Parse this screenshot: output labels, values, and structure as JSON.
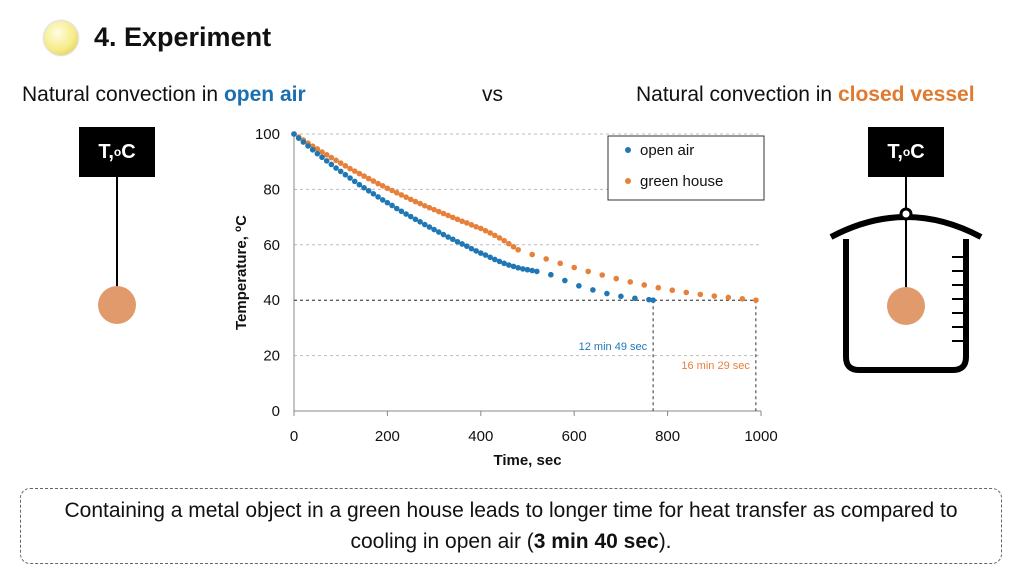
{
  "header": {
    "title": "4. Experiment",
    "left_prefix": "Natural convection in ",
    "left_accent": "open air",
    "vs": "vs",
    "right_prefix": "Natural convection in ",
    "right_accent": "closed vessel"
  },
  "sensor": {
    "label_main": "T, ",
    "label_sup": "o",
    "label_unit": "C"
  },
  "colors": {
    "open_air": "#1f77b4",
    "green_house": "#e6803a",
    "sphere": "#e09a6c"
  },
  "chart_data": {
    "type": "scatter",
    "xlabel": "Time, sec",
    "ylabel_main": "Temperature, ",
    "ylabel_sup": "o",
    "ylabel_unit": "C",
    "xlim": [
      0,
      1000
    ],
    "ylim": [
      0,
      100
    ],
    "xticks": [
      0,
      200,
      400,
      600,
      800,
      1000
    ],
    "yticks": [
      0,
      20,
      40,
      60,
      80,
      100
    ],
    "grid": "horizontal-dashed",
    "legend_position": "top-right",
    "series": [
      {
        "name": "open air",
        "color": "#1f77b4",
        "x": [
          0,
          10,
          20,
          30,
          40,
          50,
          60,
          70,
          80,
          90,
          100,
          110,
          120,
          130,
          140,
          150,
          160,
          170,
          180,
          190,
          200,
          210,
          220,
          230,
          240,
          250,
          260,
          270,
          280,
          290,
          300,
          310,
          320,
          330,
          340,
          350,
          360,
          370,
          380,
          390,
          400,
          410,
          420,
          430,
          440,
          450,
          460,
          470,
          480,
          490,
          500,
          510,
          520,
          550,
          580,
          610,
          640,
          670,
          700,
          730,
          760,
          769
        ],
        "y": [
          100,
          98.5,
          97.1,
          95.7,
          94.3,
          92.9,
          91.6,
          90.3,
          89,
          87.7,
          86.5,
          85.3,
          84.1,
          82.9,
          81.7,
          80.6,
          79.5,
          78.4,
          77.3,
          76.2,
          75.2,
          74.2,
          73.1,
          72.1,
          71.1,
          70.2,
          69.2,
          68.3,
          67.3,
          66.4,
          65.5,
          64.6,
          63.7,
          62.8,
          62,
          61.1,
          60.3,
          59.5,
          58.6,
          57.8,
          57,
          56.3,
          55.5,
          54.7,
          54,
          53.3,
          52.7,
          52.2,
          51.7,
          51.3,
          51,
          50.7,
          50.4,
          49.2,
          47.1,
          45.2,
          43.7,
          42.4,
          41.4,
          40.7,
          40.2,
          40
        ]
      },
      {
        "name": "green house",
        "color": "#e6803a",
        "x": [
          0,
          10,
          20,
          30,
          40,
          50,
          60,
          70,
          80,
          90,
          100,
          110,
          120,
          130,
          140,
          150,
          160,
          170,
          180,
          190,
          200,
          210,
          220,
          230,
          240,
          250,
          260,
          270,
          280,
          290,
          300,
          310,
          320,
          330,
          340,
          350,
          360,
          370,
          380,
          390,
          400,
          410,
          420,
          430,
          440,
          450,
          460,
          470,
          480,
          510,
          540,
          570,
          600,
          630,
          660,
          690,
          720,
          750,
          780,
          810,
          840,
          870,
          900,
          930,
          960,
          989
        ],
        "y": [
          100,
          98.9,
          97.8,
          96.7,
          95.6,
          94.6,
          93.5,
          92.5,
          91.5,
          90.5,
          89.5,
          88.5,
          87.5,
          86.6,
          85.7,
          84.8,
          83.9,
          83,
          82.1,
          81.3,
          80.4,
          79.6,
          78.8,
          78,
          77.2,
          76.4,
          75.6,
          74.9,
          74.1,
          73.4,
          72.7,
          72,
          71.3,
          70.6,
          69.9,
          69.2,
          68.5,
          67.9,
          67.2,
          66.5,
          65.9,
          65.1,
          64.3,
          63.4,
          62.5,
          61.5,
          60.4,
          59.3,
          58.2,
          56.5,
          54.9,
          53.3,
          51.8,
          50.4,
          49.1,
          47.8,
          46.6,
          45.5,
          44.5,
          43.6,
          42.8,
          42.1,
          41.5,
          41,
          40.5,
          40
        ]
      }
    ],
    "reference_level": 40,
    "annotations": [
      {
        "text": "12 min 49 sec",
        "x": 769,
        "series": "open air"
      },
      {
        "text": "16 min 29 sec",
        "x": 989,
        "series": "green house"
      }
    ]
  },
  "note": {
    "line1": "Containing a metal object in a green house leads to longer time for heat transfer as compared to cooling in open air (",
    "bold": "3 min 40 sec",
    "end": ")."
  }
}
